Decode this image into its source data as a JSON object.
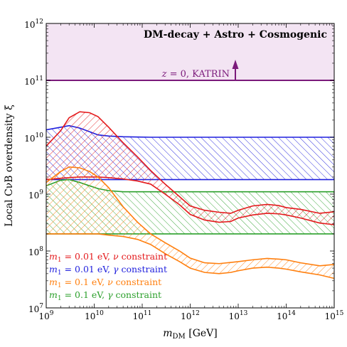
{
  "chart_data": {
    "type": "area",
    "title": "",
    "xlabel": "m_DM [GeV]",
    "xlabel_main": "m",
    "xlabel_sub": "DM",
    "xlabel_unit": "[GeV]",
    "ylabel": "Local CνB overdensity ξ",
    "xscale": "log",
    "yscale": "log",
    "xlim": [
      1000000000.0,
      1000000000000000.0
    ],
    "ylim": [
      10000000.0,
      1000000000000.0
    ],
    "x_ticks": [
      {
        "value": 1000000000.0,
        "base": "10",
        "exp": "9"
      },
      {
        "value": 10000000000.0,
        "base": "10",
        "exp": "10"
      },
      {
        "value": 100000000000.0,
        "base": "10",
        "exp": "11"
      },
      {
        "value": 1000000000000.0,
        "base": "10",
        "exp": "12"
      },
      {
        "value": 10000000000000.0,
        "base": "10",
        "exp": "13"
      },
      {
        "value": 100000000000000.0,
        "base": "10",
        "exp": "14"
      },
      {
        "value": 1000000000000000.0,
        "base": "10",
        "exp": "15"
      }
    ],
    "y_ticks": [
      {
        "value": 10000000.0,
        "base": "10",
        "exp": "7"
      },
      {
        "value": 100000000.0,
        "base": "10",
        "exp": "8"
      },
      {
        "value": 1000000000.0,
        "base": "10",
        "exp": "9"
      },
      {
        "value": 10000000000.0,
        "base": "10",
        "exp": "10"
      },
      {
        "value": 100000000000.0,
        "base": "10",
        "exp": "11"
      },
      {
        "value": 1000000000000.0,
        "base": "10",
        "exp": "12"
      }
    ],
    "annotation": "DM-decay + Astro + Cosmogenic",
    "katrin": {
      "label": "z = 0, KATRIN",
      "label_z": "z",
      "label_rest": " = 0, KATRIN",
      "value": 100000000000.0,
      "color": "#7b1a7b",
      "fill": "#f3e4f3"
    },
    "legend_position": "bottom-left",
    "series": [
      {
        "name": "m1 = 0.01 eV, ν constraint",
        "legend_pre": "m",
        "legend_sub": "1",
        "legend_post": " =  0.01 eV, ",
        "legend_greek": "ν",
        "legend_tail": " constraint",
        "color": "#e41a1c",
        "x": [
          1000000000.0,
          2000000000.0,
          3000000000.0,
          5000000000.0,
          8000000000.0,
          12000000000.0,
          20000000000.0,
          40000000000.0,
          80000000000.0,
          150000000000.0,
          300000000000.0,
          600000000000.0,
          1000000000000.0,
          2000000000000.0,
          4000000000000.0,
          7000000000000.0,
          10000000000000.0,
          20000000000000.0,
          40000000000000.0,
          70000000000000.0,
          100000000000000.0,
          200000000000000.0,
          500000000000000.0,
          1000000000000000.0
        ],
        "upper": [
          7000000000.0,
          13000000000.0,
          22000000000.0,
          28000000000.0,
          27000000000.0,
          23000000000.0,
          15000000000.0,
          8000000000.0,
          4500000000.0,
          2600000000.0,
          1500000000.0,
          900000000.0,
          620000000.0,
          520000000.0,
          480000000.0,
          460000000.0,
          520000000.0,
          620000000.0,
          660000000.0,
          630000000.0,
          580000000.0,
          540000000.0,
          460000000.0,
          490000000.0
        ],
        "lower": [
          1800000000.0,
          1900000000.0,
          1950000000.0,
          2000000000.0,
          2000000000.0,
          2000000000.0,
          1950000000.0,
          1850000000.0,
          1700000000.0,
          1500000000.0,
          1000000000.0,
          650000000.0,
          440000000.0,
          350000000.0,
          320000000.0,
          330000000.0,
          380000000.0,
          430000000.0,
          460000000.0,
          450000000.0,
          430000000.0,
          380000000.0,
          310000000.0,
          290000000.0
        ]
      },
      {
        "name": "m1 = 0.01 eV, γ constraint",
        "legend_pre": "m",
        "legend_sub": "1",
        "legend_post": " =  0.01 eV, ",
        "legend_greek": "γ",
        "legend_tail": " constraint",
        "color": "#1f1fdd",
        "x": [
          1000000000.0,
          2000000000.0,
          3000000000.0,
          5000000000.0,
          8000000000.0,
          12000000000.0,
          20000000000.0,
          40000000000.0,
          80000000000.0,
          150000000000.0,
          300000000000.0,
          600000000000.0,
          1000000000000.0,
          10000000000000.0,
          100000000000000.0,
          1000000000000000.0
        ],
        "upper": [
          13500000000.0,
          15000000000.0,
          16000000000.0,
          14500000000.0,
          12500000000.0,
          11000000000.0,
          10500000000.0,
          10200000000.0,
          10100000000.0,
          10000000000.0,
          10000000000.0,
          10000000000.0,
          10000000000.0,
          10000000000.0,
          10000000000.0,
          10000000000.0
        ],
        "lower": [
          1800000000.0,
          1800000000.0,
          1800000000.0,
          1800000000.0,
          1800000000.0,
          1800000000.0,
          1800000000.0,
          1800000000.0,
          1800000000.0,
          1800000000.0,
          1800000000.0,
          1800000000.0,
          1800000000.0,
          1800000000.0,
          1800000000.0,
          1800000000.0
        ]
      },
      {
        "name": "m1 = 0.1 eV, ν constraint",
        "legend_pre": "m",
        "legend_sub": "1",
        "legend_post": " =  0.1 eV, ",
        "legend_greek": "ν",
        "legend_tail": " constraint",
        "color": "#ff7f0e",
        "x": [
          1000000000.0,
          2000000000.0,
          3000000000.0,
          5000000000.0,
          8000000000.0,
          12000000000.0,
          20000000000.0,
          40000000000.0,
          80000000000.0,
          150000000000.0,
          300000000000.0,
          600000000000.0,
          1000000000000.0,
          2000000000000.0,
          4000000000000.0,
          7000000000000.0,
          10000000000000.0,
          20000000000000.0,
          40000000000000.0,
          70000000000000.0,
          100000000000000.0,
          200000000000000.0,
          500000000000000.0,
          1000000000000000.0
        ],
        "upper": [
          1600000000.0,
          2500000000.0,
          3000000000.0,
          2900000000.0,
          2500000000.0,
          2000000000.0,
          1300000000.0,
          600000000.0,
          320000000.0,
          200000000.0,
          140000000.0,
          100000000.0,
          75000000.0,
          62000000.0,
          60000000.0,
          63000000.0,
          65000000.0,
          70000000.0,
          74000000.0,
          72000000.0,
          70000000.0,
          62000000.0,
          55000000.0,
          58000000.0
        ],
        "lower": [
          200000000.0,
          200000000.0,
          200000000.0,
          200000000.0,
          200000000.0,
          200000000.0,
          190000000.0,
          180000000.0,
          160000000.0,
          130000000.0,
          90000000.0,
          65000000.0,
          50000000.0,
          42000000.0,
          40000000.0,
          42000000.0,
          45000000.0,
          50000000.0,
          52000000.0,
          50000000.0,
          48000000.0,
          43000000.0,
          38000000.0,
          33000000.0
        ]
      },
      {
        "name": "m1 = 0.1 eV, γ constraint",
        "legend_pre": "m",
        "legend_sub": "1",
        "legend_post": " =  0.1 eV, ",
        "legend_greek": "γ",
        "legend_tail": " constraint",
        "color": "#2ca02c",
        "x": [
          1000000000.0,
          2000000000.0,
          3000000000.0,
          5000000000.0,
          8000000000.0,
          12000000000.0,
          20000000000.0,
          40000000000.0,
          80000000000.0,
          150000000000.0,
          300000000000.0,
          600000000000.0,
          1000000000000.0,
          10000000000000.0,
          100000000000000.0,
          1000000000000000.0
        ],
        "upper": [
          1400000000.0,
          1750000000.0,
          1800000000.0,
          1600000000.0,
          1400000000.0,
          1250000000.0,
          1150000000.0,
          1100000000.0,
          1100000000.0,
          1100000000.0,
          1100000000.0,
          1100000000.0,
          1100000000.0,
          1100000000.0,
          1100000000.0,
          1100000000.0
        ],
        "lower": [
          200000000.0,
          200000000.0,
          200000000.0,
          200000000.0,
          200000000.0,
          200000000.0,
          200000000.0,
          200000000.0,
          200000000.0,
          200000000.0,
          200000000.0,
          200000000.0,
          200000000.0,
          200000000.0,
          200000000.0,
          200000000.0
        ]
      }
    ]
  }
}
